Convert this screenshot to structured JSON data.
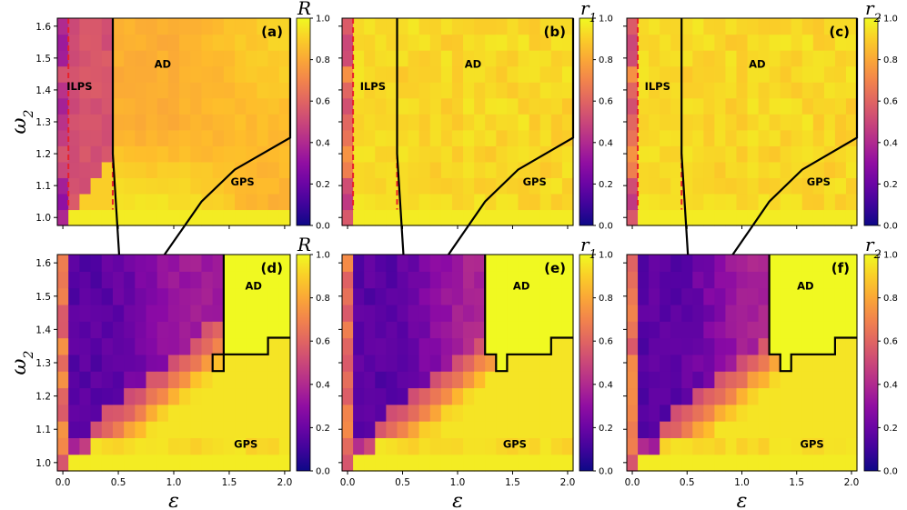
{
  "chart_data": {
    "type": "heatmap",
    "x_axis_label": "ε",
    "y_axis_label": "ω2",
    "x_ticks": [
      "0.0",
      "0.5",
      "1.0",
      "1.5",
      "2.0"
    ],
    "y_ticks": [
      "1.0",
      "1.1",
      "1.2",
      "1.3",
      "1.4",
      "1.5",
      "1.6"
    ],
    "x_range": [
      -0.05,
      2.05
    ],
    "y_range": [
      0.975,
      1.625
    ],
    "grid_step": {
      "eps": 0.1,
      "omega2": 0.05
    },
    "colorbar_ticks": [
      "0.0",
      "0.2",
      "0.4",
      "0.6",
      "0.8",
      "1.0"
    ],
    "colorbar_range": [
      0,
      1
    ],
    "colormap": "plasma",
    "colors": {
      "boundary": "#000000",
      "ilps_boundary": "#e8202a"
    },
    "panels": [
      {
        "id": "a",
        "label": "(a)",
        "cb_label": "R",
        "cb_sub": "",
        "ilps_lines": [
          0.05,
          0.45
        ],
        "ilps_value": 0.55,
        "ad_staircase": [
          [
            1.2,
            0.45
          ],
          [
            0.65,
            0.55
          ],
          [
            0.75,
            0.65
          ],
          [
            0.85,
            0.85
          ],
          [
            0.95,
            1.05
          ],
          [
            1.05,
            1.25
          ],
          [
            1.15,
            1.55
          ],
          [
            1.25,
            2.05
          ],
          [
            1.625,
            2.05
          ]
        ],
        "regions": [
          {
            "text": "ILPS",
            "eps": 0.15,
            "omega2": 1.4
          },
          {
            "text": "AD",
            "eps": 0.9,
            "omega2": 1.47
          },
          {
            "text": "GPS",
            "eps": 1.62,
            "omega2": 1.1
          }
        ]
      },
      {
        "id": "b",
        "label": "(b)",
        "cb_label": "r",
        "cb_sub": "1",
        "ilps_lines": [
          0.05,
          0.45
        ],
        "ilps_value": 0.95,
        "ad_staircase": [
          [
            1.2,
            0.45
          ],
          [
            0.65,
            0.55
          ],
          [
            0.75,
            0.65
          ],
          [
            0.85,
            0.85
          ],
          [
            0.95,
            1.05
          ],
          [
            1.05,
            1.25
          ],
          [
            1.15,
            1.55
          ],
          [
            1.25,
            2.05
          ],
          [
            1.625,
            2.05
          ]
        ],
        "regions": [
          {
            "text": "ILPS",
            "eps": 0.23,
            "omega2": 1.4
          },
          {
            "text": "AD",
            "eps": 1.14,
            "omega2": 1.47
          },
          {
            "text": "GPS",
            "eps": 1.7,
            "omega2": 1.1
          }
        ]
      },
      {
        "id": "c",
        "label": "(c)",
        "cb_label": "r",
        "cb_sub": "2",
        "ilps_lines": [
          0.05,
          0.45
        ],
        "ilps_value": 0.95,
        "ad_staircase": [
          [
            1.2,
            0.45
          ],
          [
            0.65,
            0.55
          ],
          [
            0.75,
            0.65
          ],
          [
            0.85,
            0.85
          ],
          [
            0.95,
            1.05
          ],
          [
            1.05,
            1.25
          ],
          [
            1.15,
            1.55
          ],
          [
            1.25,
            2.05
          ],
          [
            1.625,
            2.05
          ]
        ],
        "regions": [
          {
            "text": "ILPS",
            "eps": 0.23,
            "omega2": 1.4
          },
          {
            "text": "AD",
            "eps": 1.14,
            "omega2": 1.47
          },
          {
            "text": "GPS",
            "eps": 1.7,
            "omega2": 1.1
          }
        ]
      },
      {
        "id": "d",
        "label": "(d)",
        "cb_label": "R",
        "cb_sub": "",
        "ad_notch": [
          [
            1.625,
            1.45
          ],
          [
            1.325,
            1.45
          ],
          [
            1.325,
            1.35
          ],
          [
            1.275,
            1.35
          ],
          [
            1.275,
            1.45
          ],
          [
            1.325,
            1.45
          ],
          [
            1.325,
            1.85
          ],
          [
            1.375,
            1.85
          ],
          [
            1.375,
            2.05
          ]
        ],
        "ad_x0": 1.45,
        "regions": [
          {
            "text": "AD",
            "eps": 1.72,
            "omega2": 1.52
          },
          {
            "text": "GPS",
            "eps": 1.65,
            "omega2": 1.045
          }
        ]
      },
      {
        "id": "e",
        "label": "(e)",
        "cb_label": "r",
        "cb_sub": "1",
        "ad_notch": [
          [
            1.625,
            1.25
          ],
          [
            1.325,
            1.25
          ],
          [
            1.325,
            1.35
          ],
          [
            1.275,
            1.35
          ],
          [
            1.275,
            1.45
          ],
          [
            1.325,
            1.45
          ],
          [
            1.325,
            1.85
          ],
          [
            1.375,
            1.85
          ],
          [
            1.375,
            2.05
          ]
        ],
        "ad_x0": 1.25,
        "regions": [
          {
            "text": "AD",
            "eps": 1.58,
            "omega2": 1.52
          },
          {
            "text": "GPS",
            "eps": 1.52,
            "omega2": 1.045
          }
        ]
      },
      {
        "id": "f",
        "label": "(f)",
        "cb_label": "r",
        "cb_sub": "2",
        "ad_notch": [
          [
            1.625,
            1.25
          ],
          [
            1.325,
            1.25
          ],
          [
            1.325,
            1.35
          ],
          [
            1.275,
            1.35
          ],
          [
            1.275,
            1.45
          ],
          [
            1.325,
            1.45
          ],
          [
            1.325,
            1.85
          ],
          [
            1.375,
            1.85
          ],
          [
            1.375,
            2.05
          ]
        ],
        "ad_x0": 1.25,
        "regions": [
          {
            "text": "AD",
            "eps": 1.58,
            "omega2": 1.52
          },
          {
            "text": "GPS",
            "eps": 1.64,
            "omega2": 1.045
          }
        ]
      }
    ]
  }
}
